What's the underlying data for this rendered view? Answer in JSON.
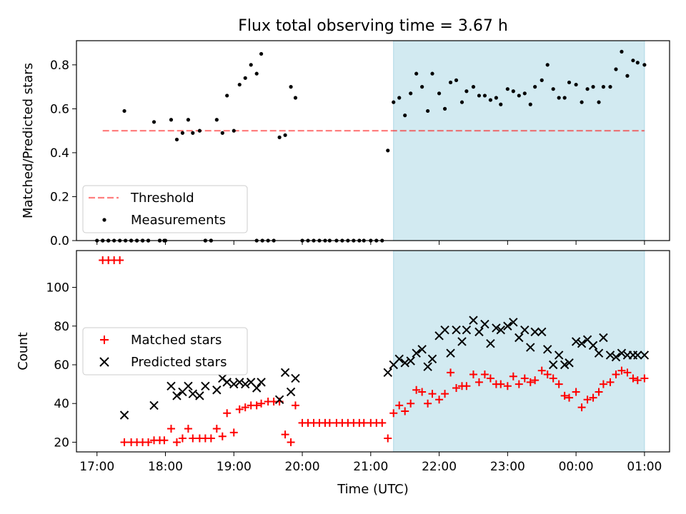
{
  "colors": {
    "background": "#ffffff",
    "shade": "#add8e6",
    "threshold": "#ff0000",
    "measurements": "#000000",
    "matched": "#ff0000",
    "predicted": "#000000"
  },
  "chart_data": [
    {
      "type": "scatter",
      "title": "Flux total observing time = 3.67 h",
      "xlabel": "",
      "ylabel": "Matched/Predicted stars",
      "ylim": [
        0,
        0.91
      ],
      "yticks": [
        0.0,
        0.2,
        0.4,
        0.6,
        0.8
      ],
      "ytick_labels": [
        "0.0",
        "0.2",
        "0.4",
        "0.6",
        "0.8"
      ],
      "xlim": [
        "16:42",
        "01:22"
      ],
      "xticks": [
        "17:00",
        "18:00",
        "19:00",
        "20:00",
        "21:00",
        "22:00",
        "23:00",
        "00:00",
        "01:00"
      ],
      "tick_labels_shown": false,
      "shaded_span": [
        "21:20",
        "01:00"
      ],
      "legend_position": "lower-left",
      "series": [
        {
          "name": "Threshold",
          "style": "dashed-line",
          "x": [
            "17:05",
            "01:00"
          ],
          "y": [
            0.5,
            0.5
          ]
        },
        {
          "name": "Measurements",
          "style": "dot",
          "x": [
            "17:05",
            "17:10",
            "17:15",
            "17:20",
            "17:24",
            "17:30",
            "17:35",
            "17:40",
            "17:45",
            "17:50",
            "17:55",
            "17:59",
            "18:05",
            "18:10",
            "18:15",
            "18:20",
            "18:24",
            "18:30",
            "18:35",
            "18:40",
            "18:45",
            "18:50",
            "18:54",
            "19:00",
            "19:05",
            "19:10",
            "19:15",
            "19:20",
            "19:24",
            "19:30",
            "19:35",
            "19:40",
            "19:45",
            "19:50",
            "19:54",
            "20:00",
            "20:05",
            "20:10",
            "20:15",
            "20:20",
            "20:24",
            "20:30",
            "20:35",
            "20:40",
            "20:45",
            "20:50",
            "20:54",
            "21:00",
            "21:05",
            "21:10",
            "21:15",
            "21:20",
            "21:25",
            "21:30",
            "21:35",
            "21:40",
            "21:45",
            "21:50",
            "21:54",
            "22:00",
            "22:05",
            "22:10",
            "22:15",
            "22:20",
            "22:24",
            "22:30",
            "22:35",
            "22:40",
            "22:45",
            "22:50",
            "22:54",
            "23:00",
            "23:05",
            "23:10",
            "23:15",
            "23:20",
            "23:24",
            "23:30",
            "23:35",
            "23:40",
            "23:45",
            "23:50",
            "23:54",
            "00:00",
            "00:05",
            "00:10",
            "00:15",
            "00:20",
            "00:24",
            "00:30",
            "00:35",
            "00:40",
            "00:45",
            "00:50",
            "00:54",
            "01:00",
            "17:00",
            "17:05",
            "17:10",
            "17:25",
            "17:30",
            "17:35",
            "17:40",
            "17:45",
            "17:55",
            "18:00",
            "18:35",
            "18:40",
            "19:20",
            "19:25"
          ],
          "y": [
            0.0,
            0.0,
            0.0,
            0.0,
            0.59,
            0.0,
            0.0,
            0.0,
            0.0,
            0.54,
            0.0,
            0.0,
            0.55,
            0.46,
            0.49,
            0.55,
            0.49,
            0.5,
            0.0,
            0.0,
            0.55,
            0.49,
            0.66,
            0.5,
            0.71,
            0.74,
            0.8,
            0.76,
            0.85,
            0.0,
            0.0,
            0.47,
            0.48,
            0.7,
            0.65,
            0.0,
            0.0,
            0.0,
            0.0,
            0.0,
            0.0,
            0.0,
            0.0,
            0.0,
            0.0,
            0.0,
            0.0,
            0.0,
            0.0,
            0.0,
            0.41,
            0.63,
            0.65,
            0.57,
            0.67,
            0.76,
            0.7,
            0.59,
            0.76,
            0.67,
            0.6,
            0.72,
            0.73,
            0.63,
            0.68,
            0.7,
            0.66,
            0.66,
            0.64,
            0.65,
            0.62,
            0.69,
            0.68,
            0.66,
            0.67,
            0.62,
            0.7,
            0.73,
            0.8,
            0.69,
            0.65,
            0.65,
            0.72,
            0.71,
            0.63,
            0.69,
            0.7,
            0.63,
            0.7,
            0.7,
            0.78,
            0.86,
            0.75,
            0.82,
            0.81,
            0.8,
            0.0,
            0.0,
            0.0,
            0.0,
            0.0,
            0.0,
            0.0,
            0.0,
            0.0,
            0.0,
            0.0,
            0.0,
            0.0,
            0.0
          ]
        }
      ]
    },
    {
      "type": "scatter",
      "title": "",
      "xlabel": "Time (UTC)",
      "ylabel": "Count",
      "ylim": [
        15,
        119
      ],
      "yticks": [
        20,
        40,
        60,
        80,
        100
      ],
      "ytick_labels": [
        "20",
        "40",
        "60",
        "80",
        "100"
      ],
      "xlim": [
        "16:42",
        "01:22"
      ],
      "xticks": [
        "17:00",
        "18:00",
        "19:00",
        "20:00",
        "21:00",
        "22:00",
        "23:00",
        "00:00",
        "01:00"
      ],
      "xtick_labels": [
        "17:00",
        "18:00",
        "19:00",
        "20:00",
        "21:00",
        "22:00",
        "23:00",
        "00:00",
        "01:00"
      ],
      "shaded_span": [
        "21:20",
        "01:00"
      ],
      "legend_position": "center-left",
      "series": [
        {
          "name": "Matched stars",
          "marker": "plus",
          "x": [
            "17:05",
            "17:10",
            "17:15",
            "17:20",
            "17:24",
            "17:30",
            "17:35",
            "17:40",
            "17:45",
            "17:50",
            "17:55",
            "17:59",
            "18:05",
            "18:10",
            "18:15",
            "18:20",
            "18:24",
            "18:30",
            "18:35",
            "18:40",
            "18:45",
            "18:50",
            "18:54",
            "19:00",
            "19:05",
            "19:10",
            "19:15",
            "19:20",
            "19:24",
            "19:30",
            "19:35",
            "19:40",
            "19:45",
            "19:50",
            "19:54",
            "20:00",
            "20:05",
            "20:10",
            "20:15",
            "20:20",
            "20:24",
            "20:30",
            "20:35",
            "20:40",
            "20:45",
            "20:50",
            "20:54",
            "21:00",
            "21:05",
            "21:10",
            "21:15",
            "21:20",
            "21:25",
            "21:30",
            "21:35",
            "21:40",
            "21:45",
            "21:50",
            "21:54",
            "22:00",
            "22:05",
            "22:10",
            "22:15",
            "22:20",
            "22:24",
            "22:30",
            "22:35",
            "22:40",
            "22:45",
            "22:50",
            "22:54",
            "23:00",
            "23:05",
            "23:10",
            "23:15",
            "23:20",
            "23:24",
            "23:30",
            "23:35",
            "23:40",
            "23:45",
            "23:50",
            "23:54",
            "00:00",
            "00:05",
            "00:10",
            "00:15",
            "00:20",
            "00:24",
            "00:30",
            "00:35",
            "00:40",
            "00:45",
            "00:50",
            "00:54",
            "01:00"
          ],
          "y": [
            114,
            114,
            114,
            114,
            20,
            20,
            20,
            20,
            20,
            21,
            21,
            21,
            27,
            20,
            22,
            27,
            22,
            22,
            22,
            22,
            27,
            23,
            35,
            25,
            37,
            38,
            39,
            39,
            40,
            41,
            41,
            41,
            24,
            20,
            39,
            30,
            30,
            30,
            30,
            30,
            30,
            30,
            30,
            30,
            30,
            30,
            30,
            30,
            30,
            30,
            22,
            35,
            39,
            36,
            40,
            47,
            46,
            40,
            45,
            42,
            45,
            56,
            48,
            49,
            49,
            55,
            51,
            55,
            53,
            50,
            50,
            49,
            54,
            50,
            53,
            51,
            52,
            57,
            55,
            53,
            50,
            44,
            43,
            46,
            38,
            42,
            43,
            46,
            50,
            51,
            55,
            57,
            56,
            53,
            52,
            53
          ]
        },
        {
          "name": "Predicted stars",
          "marker": "x",
          "x": [
            "17:24",
            "17:50",
            "18:05",
            "18:10",
            "18:15",
            "18:20",
            "18:24",
            "18:30",
            "18:35",
            "18:45",
            "18:50",
            "18:54",
            "19:00",
            "19:05",
            "19:10",
            "19:15",
            "19:20",
            "19:24",
            "19:40",
            "19:45",
            "19:50",
            "19:54",
            "21:15",
            "21:20",
            "21:25",
            "21:30",
            "21:35",
            "21:40",
            "21:45",
            "21:50",
            "21:54",
            "22:00",
            "22:05",
            "22:10",
            "22:15",
            "22:20",
            "22:24",
            "22:30",
            "22:35",
            "22:40",
            "22:45",
            "22:50",
            "22:54",
            "23:00",
            "23:05",
            "23:10",
            "23:15",
            "23:20",
            "23:24",
            "23:30",
            "23:35",
            "23:40",
            "23:45",
            "23:50",
            "23:54",
            "00:00",
            "00:05",
            "00:10",
            "00:15",
            "00:20",
            "00:24",
            "00:30",
            "00:35",
            "00:40",
            "00:45",
            "00:50",
            "00:54",
            "01:00"
          ],
          "y": [
            34,
            39,
            49,
            44,
            46,
            49,
            45,
            44,
            49,
            47,
            53,
            51,
            50,
            51,
            50,
            51,
            48,
            51,
            42,
            56,
            46,
            53,
            56,
            60,
            63,
            61,
            62,
            66,
            68,
            59,
            63,
            75,
            78,
            66,
            78,
            72,
            78,
            83,
            77,
            81,
            71,
            79,
            78,
            80,
            82,
            74,
            78,
            69,
            77,
            77,
            68,
            60,
            65,
            60,
            61,
            72,
            71,
            73,
            70,
            66,
            74,
            65,
            64,
            66,
            65,
            65,
            65,
            65
          ]
        }
      ]
    }
  ]
}
